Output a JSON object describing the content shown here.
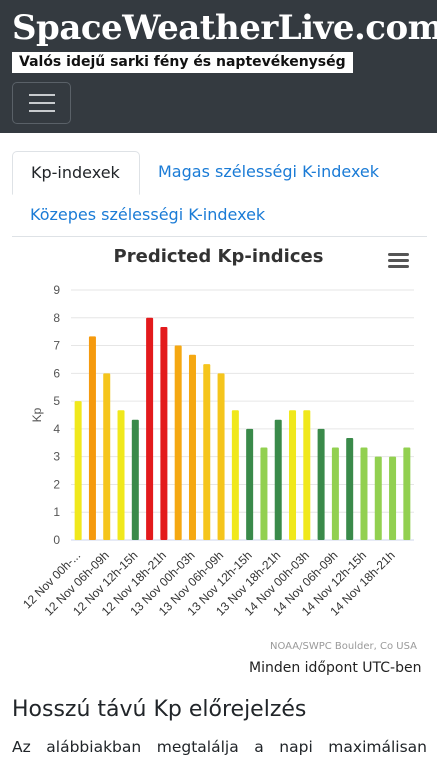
{
  "header": {
    "brand": "SpaceWeatherLive.com",
    "tagline": "Valós idejű sarki fény és naptevékenység",
    "menu_icon": "hamburger-icon"
  },
  "tabs": [
    {
      "label": "Kp-indexek",
      "active": true
    },
    {
      "label": "Magas szélességi K-indexek",
      "active": false
    },
    {
      "label": "Közepes szélességi K-indexek",
      "active": false
    }
  ],
  "chart": {
    "menu_icon": "hamburger-menu-icon",
    "credit": "NOAA/SWPC Boulder, Co USA",
    "timezone_note": "Minden időpont UTC-ben"
  },
  "chart_data": {
    "type": "bar",
    "title": "Predicted Kp-indices",
    "ylabel": "Kp",
    "xlabel": "",
    "ylim": [
      0,
      9
    ],
    "yticks": [
      0,
      1,
      2,
      3,
      4,
      5,
      6,
      7,
      8,
      9
    ],
    "grid": true,
    "xtick_labels": [
      "12 Nov 00h-...",
      "12 Nov 06h-09h",
      "12 Nov 12h-15h",
      "12 Nov 18h-21h",
      "13 Nov 00h-03h",
      "13 Nov 06h-09h",
      "13 Nov 12h-15h",
      "13 Nov 18h-21h",
      "14 Nov 00h-03h",
      "14 Nov 06h-09h",
      "14 Nov 12h-15h",
      "14 Nov 18h-21h"
    ],
    "values": [
      5.0,
      7.33,
      6.0,
      4.67,
      4.33,
      8.0,
      7.67,
      7.0,
      6.67,
      6.33,
      6.0,
      4.67,
      4.0,
      3.33,
      4.33,
      4.67,
      4.67,
      4.0,
      3.33,
      3.67,
      3.33,
      3.0,
      3.0,
      3.33
    ],
    "colors": [
      "#f0e81c",
      "#f59a0e",
      "#f5c51c",
      "#f0e81c",
      "#3a8a4a",
      "#e31a1c",
      "#e31a1c",
      "#f5a812",
      "#f5a812",
      "#f5c51c",
      "#f5c51c",
      "#f0e81c",
      "#3a8a4a",
      "#92d050",
      "#3a8a4a",
      "#f0e81c",
      "#f0e81c",
      "#3a8a4a",
      "#92d050",
      "#3a8a4a",
      "#92d050",
      "#92d050",
      "#92d050",
      "#92d050"
    ]
  },
  "section": {
    "heading": "Hosszú távú Kp előrejelzés",
    "paragraph": "Az alábbiakban megtalálja a napi maximálisan"
  }
}
